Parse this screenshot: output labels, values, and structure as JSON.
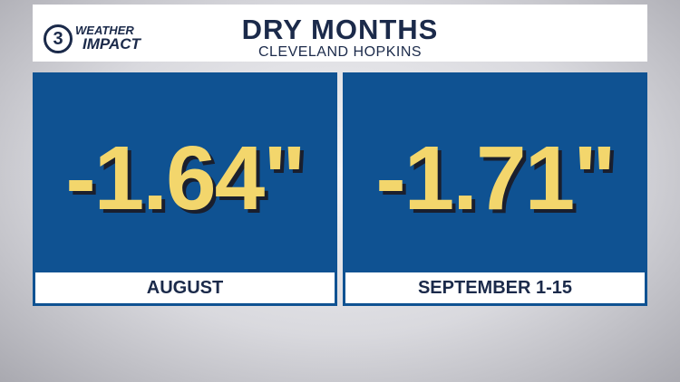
{
  "header": {
    "title": "DRY MONTHS",
    "subtitle": "CLEVELAND HOPKINS",
    "logo": {
      "channel": "3",
      "line1": "WEATHER",
      "line2": "IMPACT"
    }
  },
  "panels": [
    {
      "value": "-1.64\"",
      "label": "AUGUST"
    },
    {
      "value": "-1.71\"",
      "label": "SEPTEMBER 1-15"
    }
  ]
}
